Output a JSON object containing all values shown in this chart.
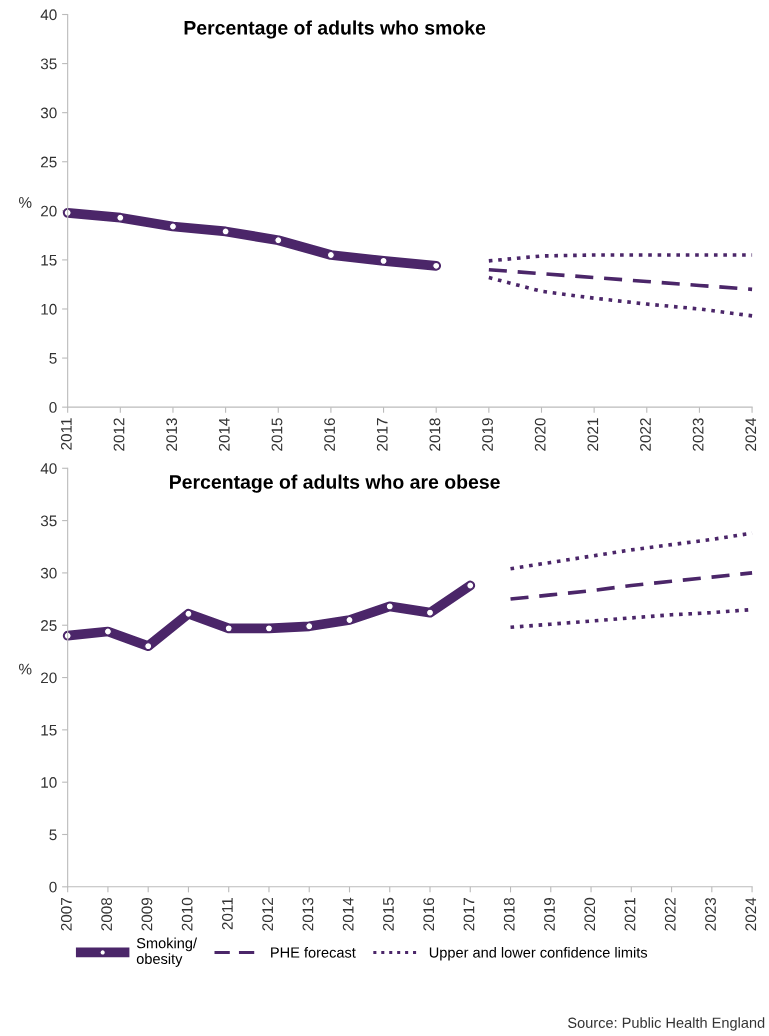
{
  "chart_data": [
    {
      "type": "line",
      "title": "Percentage of adults who smoke",
      "ylabel": "%",
      "xlim": [
        2011,
        2024
      ],
      "xticks": [
        2011,
        2012,
        2013,
        2014,
        2015,
        2016,
        2017,
        2018,
        2019,
        2020,
        2021,
        2022,
        2023,
        2024
      ],
      "ylim": [
        0,
        40
      ],
      "yticks": [
        0,
        5,
        10,
        15,
        20,
        25,
        30,
        35,
        40
      ],
      "grid": false,
      "legend": false,
      "series": [
        {
          "color": "#4b2669",
          "marker": "circle",
          "line_style": "solid",
          "x": [
            2011,
            2012,
            2013,
            2014,
            2015,
            2016,
            2017,
            2018
          ],
          "values": [
            19.8,
            19.3,
            18.4,
            17.9,
            17.0,
            15.5,
            14.9,
            14.4
          ]
        },
        {
          "color": "#4b2669",
          "marker": "none",
          "line_style": "dashed",
          "x": [
            2019,
            2020,
            2021,
            2022,
            2023,
            2024
          ],
          "values": [
            14.0,
            13.6,
            13.2,
            12.8,
            12.4,
            12.0
          ]
        },
        {
          "color": "#4b2669",
          "marker": "none",
          "line_style": "dotted",
          "x": [
            2019,
            2020,
            2021,
            2022,
            2023,
            2024
          ],
          "values": [
            14.9,
            15.4,
            15.5,
            15.5,
            15.5,
            15.5
          ]
        },
        {
          "color": "#4b2669",
          "marker": "none",
          "line_style": "dotted",
          "x": [
            2019,
            2020,
            2021,
            2022,
            2023,
            2024
          ],
          "values": [
            13.2,
            11.8,
            11.1,
            10.5,
            10.0,
            9.3
          ]
        }
      ]
    },
    {
      "type": "line",
      "title": "Percentage of adults who are obese",
      "ylabel": "%",
      "xlim": [
        2007,
        2024
      ],
      "xticks": [
        2007,
        2008,
        2009,
        2010,
        2011,
        2012,
        2013,
        2014,
        2015,
        2016,
        2017,
        2018,
        2019,
        2020,
        2021,
        2022,
        2023,
        2024
      ],
      "ylim": [
        0,
        40
      ],
      "yticks": [
        0,
        5,
        10,
        15,
        20,
        25,
        30,
        35,
        40
      ],
      "grid": false,
      "legend": "bottom",
      "annotations": [
        "Source: Public Health England"
      ],
      "series": [
        {
          "name": "Smoking/\nobesity",
          "color": "#4b2669",
          "marker": "circle",
          "line_style": "solid",
          "x": [
            2007,
            2008,
            2009,
            2010,
            2011,
            2012,
            2013,
            2014,
            2015,
            2016,
            2017
          ],
          "values": [
            24.0,
            24.4,
            23.0,
            26.1,
            24.7,
            24.7,
            24.9,
            25.5,
            26.8,
            26.2,
            28.8
          ]
        },
        {
          "name": "PHE forecast",
          "color": "#4b2669",
          "marker": "none",
          "line_style": "dashed",
          "x": [
            2018,
            2019,
            2020,
            2021,
            2022,
            2023,
            2024
          ],
          "values": [
            27.5,
            27.9,
            28.3,
            28.8,
            29.2,
            29.6,
            30.0
          ]
        },
        {
          "name": "Upper and lower confidence limits",
          "color": "#4b2669",
          "marker": "none",
          "line_style": "dotted",
          "x": [
            2018,
            2019,
            2020,
            2021,
            2022,
            2023,
            2024
          ],
          "values": [
            30.4,
            31.0,
            31.6,
            32.2,
            32.7,
            33.2,
            33.8
          ]
        },
        {
          "color": "#4b2669",
          "marker": "none",
          "line_style": "dotted",
          "x": [
            2018,
            2019,
            2020,
            2021,
            2022,
            2023,
            2024
          ],
          "values": [
            24.8,
            25.1,
            25.4,
            25.7,
            26.0,
            26.2,
            26.5
          ]
        }
      ]
    }
  ]
}
